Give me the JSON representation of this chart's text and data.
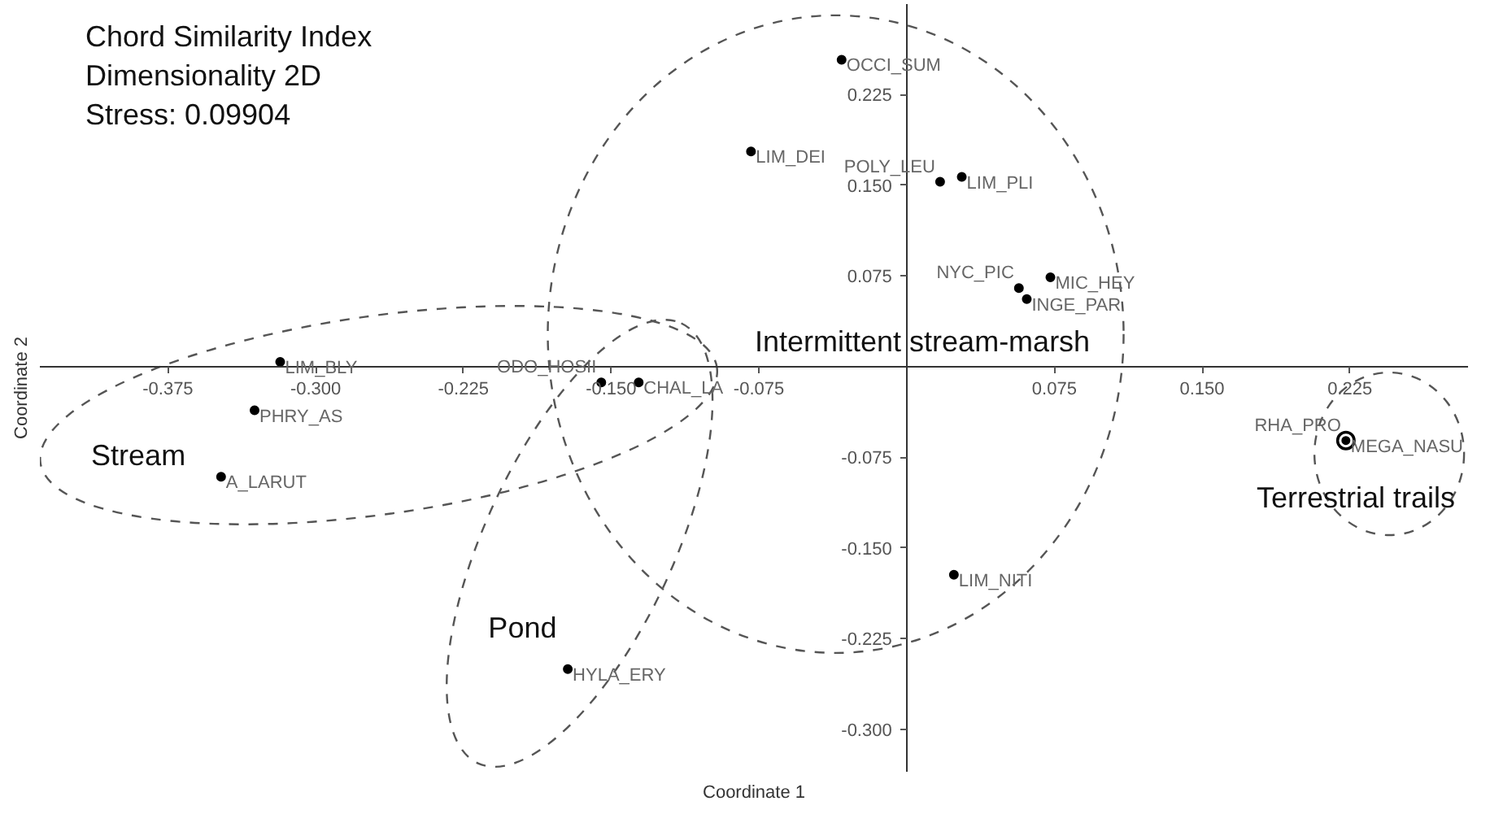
{
  "chart_data": {
    "type": "scatter",
    "title": "Chord Similarity Index",
    "subtitle": "Dimensionality 2D",
    "xlabel": "Coordinate 1",
    "ylabel": "Coordinate 2",
    "annotations": [
      "Stress: 0.09904",
      "Stream",
      "Pond",
      "Intermittent stream-marsh",
      "Terrestrial trails"
    ],
    "xlim": [
      -0.44,
      0.285
    ],
    "ylim": [
      -0.335,
      0.3
    ],
    "xticks": [
      {
        "value": -0.375,
        "label": "-0.375"
      },
      {
        "value": -0.3,
        "label": "-0.300"
      },
      {
        "value": -0.225,
        "label": "-0.225"
      },
      {
        "value": -0.15,
        "label": "-0.150"
      },
      {
        "value": -0.075,
        "label": "-0.075"
      },
      {
        "value": 0.075,
        "label": "0.075"
      },
      {
        "value": 0.15,
        "label": "0.150"
      },
      {
        "value": 0.225,
        "label": "0.225"
      }
    ],
    "yticks": [
      {
        "value": -0.3,
        "label": "-0.300"
      },
      {
        "value": -0.225,
        "label": "-0.225"
      },
      {
        "value": -0.15,
        "label": "-0.150"
      },
      {
        "value": -0.075,
        "label": "-0.075"
      },
      {
        "value": 0.075,
        "label": "0.075"
      },
      {
        "value": 0.15,
        "label": "0.150"
      },
      {
        "value": 0.225,
        "label": "0.225"
      }
    ],
    "grid": false,
    "marker": "circle",
    "series": [
      {
        "name": "OCCI_SUM",
        "color": "#000000",
        "x": [
          -0.033
        ],
        "values": [
          0.254
        ]
      },
      {
        "name": "LIM_DEI",
        "color": "#000000",
        "x": [
          -0.079
        ],
        "values": [
          0.178
        ]
      },
      {
        "name": "POLY_LEU",
        "color": "#000000",
        "x": [
          0.017
        ],
        "values": [
          0.153
        ]
      },
      {
        "name": "LIM_PLI",
        "color": "#000000",
        "x": [
          0.028
        ],
        "values": [
          0.157
        ]
      },
      {
        "name": "MIC_HEY",
        "color": "#000000",
        "x": [
          0.073
        ],
        "values": [
          0.074
        ]
      },
      {
        "name": "NYC_PIC",
        "color": "#000000",
        "x": [
          0.057
        ],
        "values": [
          0.065
        ]
      },
      {
        "name": "INGE_PAR",
        "color": "#000000",
        "x": [
          0.061
        ],
        "values": [
          0.056
        ]
      },
      {
        "name": "LIM_BLY",
        "color": "#000000",
        "x": [
          -0.318
        ],
        "values": [
          0.004
        ]
      },
      {
        "name": "PHRY_AS",
        "color": "#000000",
        "x": [
          -0.331
        ],
        "values": [
          -0.036
        ]
      },
      {
        "name": "A_LARUT",
        "color": "#000000",
        "x": [
          -0.348
        ],
        "values": [
          -0.091
        ]
      },
      {
        "name": "ODO_HOSII",
        "color": "#000000",
        "x": [
          -0.155
        ],
        "values": [
          -0.013
        ]
      },
      {
        "name": "CHAL_LA",
        "color": "#000000",
        "x": [
          -0.136
        ],
        "values": [
          -0.013
        ]
      },
      {
        "name": "HYLA_ERY",
        "color": "#000000",
        "x": [
          -0.172
        ],
        "values": [
          -0.25
        ]
      },
      {
        "name": "LIM_NITI",
        "color": "#000000",
        "x": [
          0.024
        ],
        "values": [
          -0.172
        ]
      },
      {
        "name": "RHA_PRO",
        "color": "#000000",
        "x": [
          0.223
        ],
        "values": [
          -0.061
        ]
      },
      {
        "name": "MEGA_NASU",
        "color": "#000000",
        "x": [
          0.223
        ],
        "values": [
          -0.061
        ]
      }
    ]
  }
}
